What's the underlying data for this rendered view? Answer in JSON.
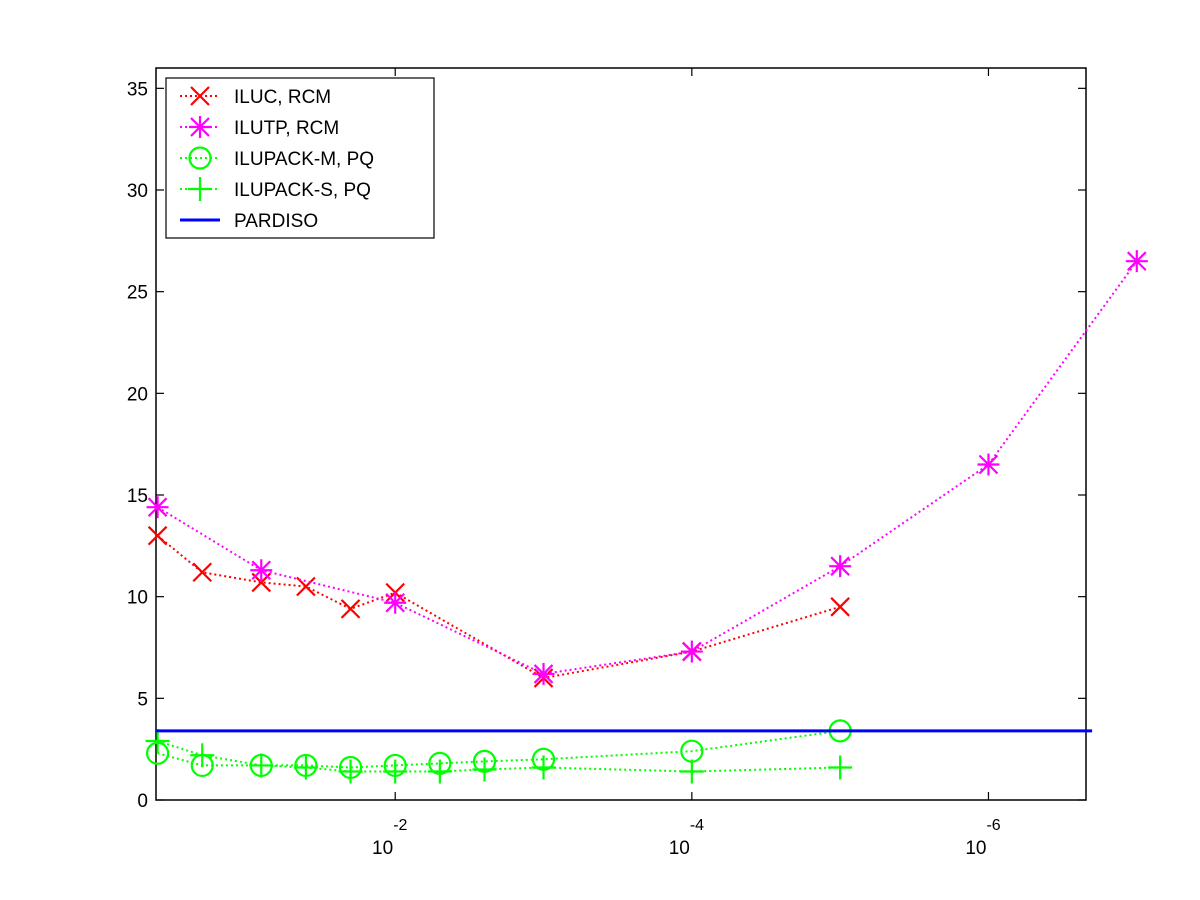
{
  "chart_data": {
    "type": "line",
    "title": "",
    "xlabel": "",
    "ylabel": "",
    "x_scale": "log",
    "x_reversed": true,
    "xlim": [
      0.41,
      2.2e-07
    ],
    "ylim": [
      0,
      36
    ],
    "grid": false,
    "legend_position": "top-left",
    "yticks": [
      0,
      5,
      10,
      15,
      20,
      25,
      30,
      35
    ],
    "xticks": [
      {
        "value": 0.01,
        "base": "10",
        "exponent": "-2"
      },
      {
        "value": 0.0001,
        "base": "10",
        "exponent": "-4"
      },
      {
        "value": 1e-06,
        "base": "10",
        "exponent": "-6"
      }
    ],
    "series": [
      {
        "name": "ILUC, RCM",
        "color": "#ff0000",
        "marker": "x",
        "line": "dotted",
        "x": [
          0.4,
          0.2,
          0.08,
          0.04,
          0.02,
          0.01,
          0.001,
          0.0001,
          1e-05
        ],
        "y": [
          13.0,
          11.2,
          10.7,
          10.5,
          9.4,
          10.2,
          6.0,
          7.3,
          9.5
        ]
      },
      {
        "name": "ILUTP, RCM",
        "color": "#ff00ff",
        "marker": "asterisk",
        "line": "dotted",
        "x": [
          0.4,
          0.08,
          0.01,
          0.001,
          0.0001,
          1e-05,
          1e-06,
          1e-07
        ],
        "y": [
          14.4,
          11.3,
          9.7,
          6.2,
          7.3,
          11.5,
          16.5,
          26.5
        ]
      },
      {
        "name": "ILUPACK-M, PQ",
        "color": "#00ff00",
        "marker": "circle",
        "line": "dotted",
        "x": [
          0.4,
          0.2,
          0.08,
          0.04,
          0.02,
          0.01,
          0.005,
          0.0025,
          0.001,
          0.0001,
          1e-05
        ],
        "y": [
          2.3,
          1.7,
          1.7,
          1.7,
          1.6,
          1.7,
          1.8,
          1.9,
          2.0,
          2.4,
          3.4
        ]
      },
      {
        "name": "ILUPACK-S, PQ",
        "color": "#00ff00",
        "marker": "plus",
        "line": "dotted",
        "x": [
          0.4,
          0.2,
          0.08,
          0.04,
          0.02,
          0.01,
          0.005,
          0.0025,
          0.001,
          0.0001,
          1e-05
        ],
        "y": [
          2.9,
          2.2,
          1.7,
          1.6,
          1.4,
          1.4,
          1.4,
          1.5,
          1.6,
          1.4,
          1.6
        ]
      },
      {
        "name": "PARDISO",
        "color": "#0000ff",
        "marker": "none",
        "line": "solid",
        "x": [
          0.41,
          2e-07
        ],
        "y": [
          3.4,
          3.4
        ]
      }
    ]
  }
}
